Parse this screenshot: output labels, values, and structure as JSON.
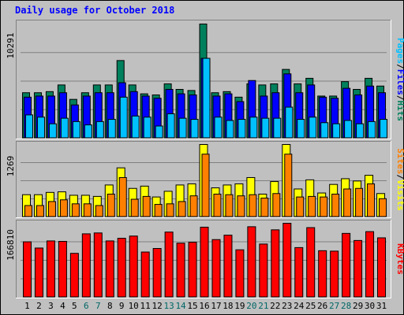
{
  "chart_data": {
    "type": "bar",
    "title": "Daily usage for October 2018",
    "categories": [
      "1",
      "2",
      "3",
      "4",
      "5",
      "6",
      "7",
      "8",
      "9",
      "10",
      "11",
      "12",
      "13",
      "14",
      "15",
      "16",
      "17",
      "18",
      "19",
      "20",
      "21",
      "22",
      "23",
      "24",
      "25",
      "26",
      "27",
      "28",
      "29",
      "30",
      "31"
    ],
    "weekend_days": [
      "6",
      "7",
      "13",
      "14",
      "20",
      "21",
      "27",
      "28"
    ],
    "colors": {
      "background": "#c0c0c0",
      "frame_border": "#000000",
      "title": "#0000ff",
      "weekday_label": "#000000",
      "weekend_label": "#006666",
      "hits": "#00805c",
      "files": "#0000ff",
      "pages": "#00c0ff",
      "visits": "#ffff00",
      "sites": "#ff8000",
      "kbytes": "#ff0000"
    },
    "panels": [
      {
        "name": "hits-files-pages",
        "ymax_label": "10291",
        "ymax": 10291,
        "legend": [
          {
            "label": "Pages",
            "color": "#00c0ff"
          },
          {
            "label": "/",
            "color": "#000000"
          },
          {
            "label": "Files",
            "color": "#0000ff"
          },
          {
            "label": "/",
            "color": "#000000"
          },
          {
            "label": "Hits",
            "color": "#00805c"
          }
        ],
        "series": [
          {
            "name": "Hits",
            "values": [
              4100,
              4100,
              4200,
              4800,
              3500,
              4100,
              4800,
              4800,
              7000,
              4800,
              4000,
              3900,
              4900,
              4400,
              4300,
              10291,
              4100,
              4200,
              3700,
              4900,
              4800,
              4900,
              6200,
              4900,
              5400,
              3800,
              3800,
              5100,
              4400,
              5400,
              4700
            ]
          },
          {
            "name": "Files",
            "values": [
              3700,
              3800,
              3800,
              4100,
              3000,
              3800,
              4100,
              4100,
              5000,
              4200,
              3800,
              3600,
              4400,
              4000,
              3900,
              7200,
              3800,
              4000,
              3300,
              5200,
              3800,
              4100,
              5800,
              4100,
              4800,
              3700,
              3600,
              4500,
              3900,
              4700,
              4100
            ]
          },
          {
            "name": "Pages",
            "values": [
              2100,
              1900,
              1300,
              1800,
              1500,
              1200,
              1500,
              1700,
              3700,
              2000,
              1900,
              1100,
              2200,
              1800,
              1700,
              7200,
              1900,
              1600,
              1700,
              1900,
              1800,
              1800,
              2800,
              1700,
              1900,
              1400,
              1300,
              1600,
              1300,
              1500,
              1700
            ]
          }
        ]
      },
      {
        "name": "visits-sites",
        "ymax_label": "1269",
        "ymax": 1269,
        "legend": [
          {
            "label": "Sites",
            "color": "#ff8000"
          },
          {
            "label": "/",
            "color": "#000000"
          },
          {
            "label": "Visits",
            "color": "#ffff00"
          }
        ],
        "series": [
          {
            "name": "Visits",
            "values": [
              390,
              390,
              430,
              440,
              380,
              380,
              360,
              560,
              860,
              500,
              540,
              350,
              450,
              560,
              580,
              1269,
              510,
              560,
              580,
              690,
              400,
              620,
              1269,
              490,
              650,
              420,
              570,
              670,
              630,
              730,
              410
            ]
          },
          {
            "name": "Sites",
            "values": [
              200,
              200,
              270,
              300,
              230,
              230,
              200,
              400,
              690,
              310,
              360,
              220,
              230,
              270,
              370,
              1100,
              400,
              390,
              370,
              390,
              330,
              410,
              1100,
              350,
              360,
              350,
              400,
              490,
              500,
              580,
              320
            ]
          }
        ]
      },
      {
        "name": "kbytes",
        "ymax_label": "166810",
        "ymax": 166810,
        "legend": [
          {
            "label": "KBytes",
            "color": "#ff0000"
          }
        ],
        "series": [
          {
            "name": "KBytes",
            "values": [
              125000,
              111000,
              127000,
              126000,
              99000,
              143000,
              145000,
              127000,
              133000,
              138000,
              102000,
              110000,
              147000,
              122000,
              124000,
              158000,
              130000,
              140000,
              107000,
              159000,
              120000,
              152000,
              166810,
              112000,
              157000,
              105000,
              104000,
              144000,
              128000,
              148000,
              134000
            ]
          }
        ]
      }
    ]
  }
}
